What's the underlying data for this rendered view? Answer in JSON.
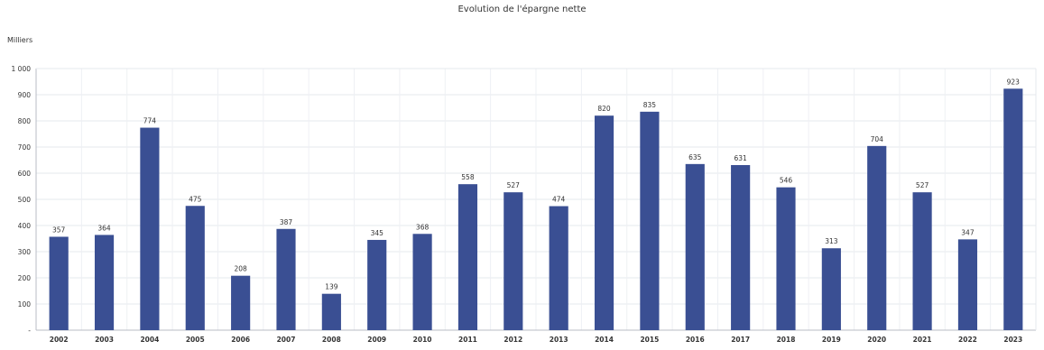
{
  "chart_data": {
    "type": "bar",
    "title": "Evolution de l'épargne nette",
    "unit_label": "Milliers",
    "categories": [
      "2002",
      "2003",
      "2004",
      "2005",
      "2006",
      "2007",
      "2008",
      "2009",
      "2010",
      "2011",
      "2012",
      "2013",
      "2014",
      "2015",
      "2016",
      "2017",
      "2018",
      "2019",
      "2020",
      "2021",
      "2022",
      "2023"
    ],
    "values": [
      357,
      364,
      774,
      475,
      208,
      387,
      139,
      345,
      368,
      558,
      527,
      474,
      820,
      835,
      635,
      631,
      546,
      313,
      704,
      527,
      347,
      923
    ],
    "data_labels": [
      "357",
      "364",
      "774",
      "475",
      "208",
      "387",
      "139",
      "345",
      "368",
      "558",
      "527",
      "474",
      "820",
      "835",
      "635",
      "631",
      "546",
      "313",
      "704",
      "527",
      "347",
      "923"
    ],
    "y_ticks": [
      "-",
      "100",
      "200",
      "300",
      "400",
      "500",
      "600",
      "700",
      "800",
      "900",
      "1 000"
    ],
    "ylim": [
      0,
      1000
    ],
    "grid": true,
    "bar_color": "#3a4f93"
  }
}
